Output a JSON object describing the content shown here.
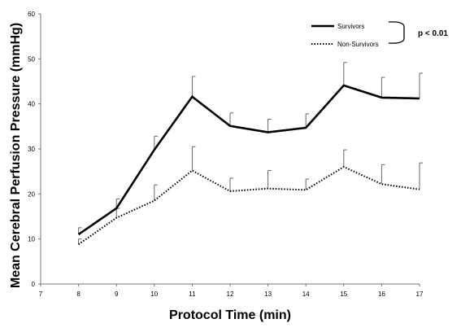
{
  "chart_data": {
    "type": "line",
    "x": [
      8,
      9,
      10,
      11,
      12,
      13,
      14,
      15,
      16,
      17
    ],
    "xlim": [
      7,
      17
    ],
    "ylim": [
      0,
      60
    ],
    "xticks": [
      7,
      8,
      9,
      10,
      11,
      12,
      13,
      14,
      15,
      16,
      17
    ],
    "yticks": [
      0,
      10,
      20,
      30,
      40,
      50,
      60
    ],
    "xlabel": "Protocol Time (min)",
    "ylabel": "Mean Cerebral Perfusion Pressure (mmHg)",
    "grid": false,
    "legend_position": "top-right",
    "annotation": "p < 0.01",
    "series": [
      {
        "name": "Survivors",
        "style": "solid",
        "color": "#000000",
        "values": [
          11.0,
          16.8,
          29.8,
          41.6,
          35.1,
          33.7,
          34.7,
          44.1,
          41.4,
          41.2
        ],
        "error_upper": [
          12.5,
          18.9,
          32.8,
          46.1,
          38.0,
          36.6,
          37.8,
          49.2,
          45.9,
          46.8
        ]
      },
      {
        "name": "Non-Survivors",
        "style": "dotted",
        "color": "#000000",
        "values": [
          8.8,
          14.7,
          18.5,
          25.2,
          20.6,
          21.2,
          20.9,
          26.0,
          22.2,
          21.0
        ],
        "error_upper": [
          10.0,
          16.8,
          22.0,
          30.5,
          23.5,
          25.2,
          23.3,
          29.8,
          26.5,
          26.9
        ]
      }
    ]
  }
}
